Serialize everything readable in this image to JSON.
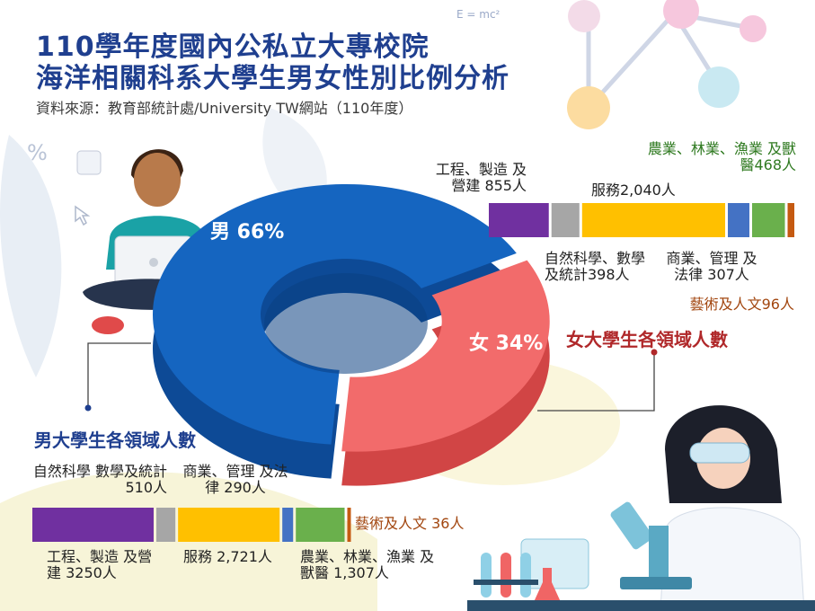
{
  "header": {
    "title_line1": "110學年度國內公私立大專校院",
    "title_line2": "海洋相關科系大學生男女性別比例分析",
    "source": "資料來源：教育部統計處/University TW網站（110年度）",
    "formula": "E = mc²"
  },
  "chart_data": [
    {
      "type": "pie",
      "categories": [
        "男",
        "女"
      ],
      "values": [
        66,
        34
      ],
      "labels": [
        "男 66%",
        "女 34%"
      ],
      "colors": [
        "#1565c0",
        "#f26b6b"
      ]
    },
    {
      "type": "bar",
      "title": "男大學生各領域人數",
      "categories": [
        "工程、製造及營建",
        "自然科學、數學及統計",
        "服務",
        "商業、管理及法律",
        "農業、林業、漁業及獸醫",
        "藝術及人文"
      ],
      "values": [
        3250,
        510,
        2721,
        290,
        1307,
        36
      ],
      "labels": [
        "工程、製造 及營建 3250人",
        "自然科學 數學及統計 510人",
        "服務 2,721人",
        "商業、管理 及法律 290人",
        "農業、林業、漁業 及獸醫 1,307人",
        "藝術及人文 36人"
      ],
      "colors": [
        "#7030a0",
        "#a6a6a6",
        "#ffc000",
        "#4472c4",
        "#6ab04c",
        "#c55a11"
      ]
    },
    {
      "type": "bar",
      "title": "女大學生各領域人數",
      "categories": [
        "工程、製造及營建",
        "自然科學、數學及統計",
        "服務",
        "商業、管理及法律",
        "農業、林業、漁業及獸醫",
        "藝術及人文"
      ],
      "values": [
        855,
        398,
        2040,
        307,
        468,
        96
      ],
      "labels": [
        "工程、製造 及營建 855人",
        "自然科學、數學 及統計398人",
        "服務2,040人",
        "商業、管理 及法律 307人",
        "農業、林業、漁業 及獸醫468人",
        "藝術及人文96人"
      ],
      "colors": [
        "#7030a0",
        "#a6a6a6",
        "#ffc000",
        "#4472c4",
        "#6ab04c",
        "#c55a11"
      ]
    }
  ]
}
